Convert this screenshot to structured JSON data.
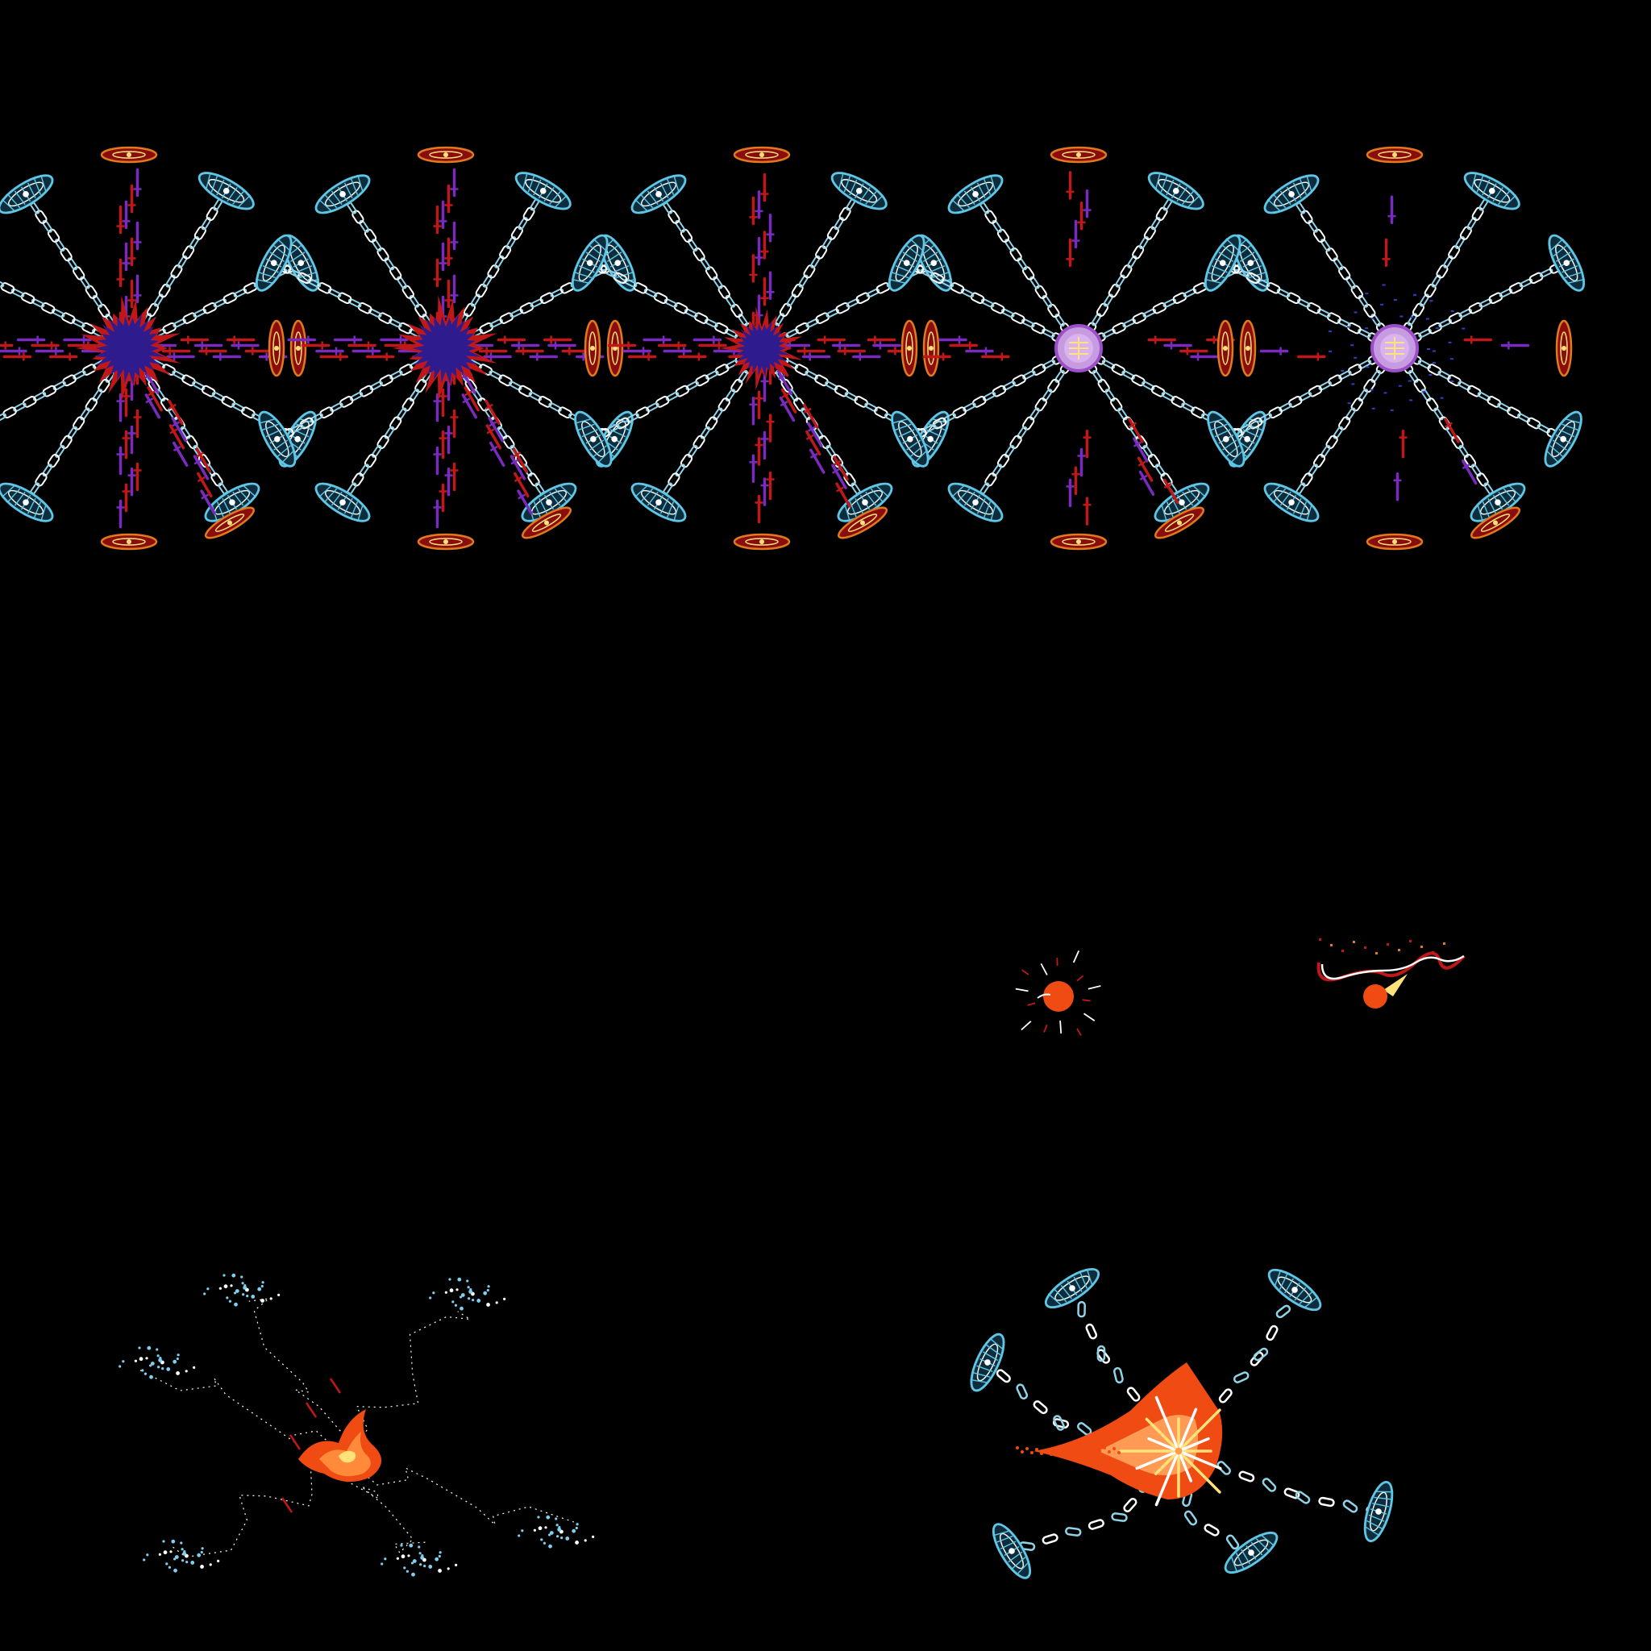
{
  "sheet": {
    "background": "#000000",
    "palette": {
      "chain": "#8fd3e8",
      "chain_highlight": "#ffffff",
      "crystal": "#5fc6e6",
      "disc_outer": "#e07a1f",
      "disc_inner": "#8a0d0d",
      "blade_red": "#c01818",
      "blade_purple": "#7a2bbf",
      "core_dark": "#2e1c8f",
      "core_orb": "#c79be0",
      "flame_orange": "#ef4b12",
      "flame_yellow": "#ffe27a",
      "sparkle_blue": "#7fd0f0"
    },
    "frames": [
      {
        "id": "chain-web-1",
        "icon": "chain-web-explosion",
        "stage": "dark-core-large"
      },
      {
        "id": "chain-web-2",
        "icon": "chain-web-explosion",
        "stage": "dark-core-large"
      },
      {
        "id": "chain-web-3",
        "icon": "chain-web-explosion",
        "stage": "dark-core-medium"
      },
      {
        "id": "chain-web-4",
        "icon": "chain-web-explosion",
        "stage": "orb-core"
      },
      {
        "id": "chain-web-5",
        "icon": "chain-web-explosion",
        "stage": "orb-core-dissolving"
      },
      {
        "id": "fireball-small",
        "icon": "fireball-spark"
      },
      {
        "id": "fireball-trail",
        "icon": "fireball-ribbon"
      },
      {
        "id": "sparkle-chains-flame",
        "icon": "sparkle-chain-burst"
      },
      {
        "id": "broken-chain-blast",
        "icon": "broken-chain-fire-blast"
      }
    ]
  }
}
